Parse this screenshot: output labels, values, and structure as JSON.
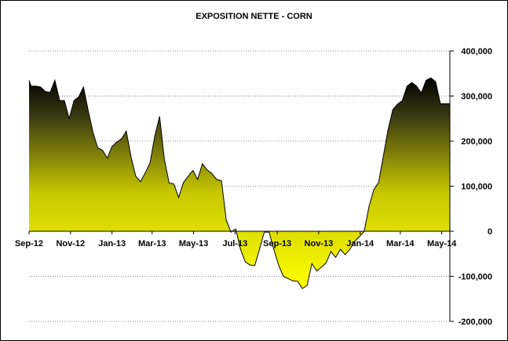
{
  "chart_data": {
    "type": "area",
    "title": "EXPOSITION NETTE - CORN",
    "xlabel": "",
    "ylabel": "",
    "ylim": [
      -200000,
      400000
    ],
    "y_ticks": [
      -200000,
      -100000,
      0,
      100000,
      200000,
      300000,
      400000
    ],
    "y_tick_labels": [
      "-200,000",
      "-100,000",
      "0",
      "100,000",
      "200,000",
      "300,000",
      "400,000"
    ],
    "y_axis_side": "right",
    "x_tick_labels": [
      "Sep-12",
      "Nov-12",
      "Jan-13",
      "Mar-13",
      "May-13",
      "Jul-13",
      "Sep-13",
      "Nov-13",
      "Jan-14",
      "Mar-14",
      "May-14"
    ],
    "x_tick_dates": [
      "2012-09-01",
      "2012-11-01",
      "2013-01-01",
      "2013-03-01",
      "2013-05-01",
      "2013-07-01",
      "2013-09-01",
      "2013-11-01",
      "2014-01-01",
      "2014-03-01",
      "2014-05-01"
    ],
    "grid": true,
    "legend": "none",
    "colors": {
      "fill_top": "#000000",
      "fill_bottom": "#ffff00",
      "line": "#000000",
      "grid": "#888888"
    },
    "series": [
      {
        "x": [
          "2012-09-01",
          "2012-09-04",
          "2012-09-11",
          "2012-09-18",
          "2012-09-25",
          "2012-10-02",
          "2012-10-09",
          "2012-10-16",
          "2012-10-23",
          "2012-10-30",
          "2012-11-06",
          "2012-11-13",
          "2012-11-20",
          "2012-11-27",
          "2012-12-04",
          "2012-12-11",
          "2012-12-18",
          "2012-12-25",
          "2013-01-01",
          "2013-01-08",
          "2013-01-15",
          "2013-01-22",
          "2013-01-29",
          "2013-02-05",
          "2013-02-12",
          "2013-02-19",
          "2013-02-26",
          "2013-03-05",
          "2013-03-12",
          "2013-03-19",
          "2013-03-26",
          "2013-04-02",
          "2013-04-09",
          "2013-04-16",
          "2013-04-23",
          "2013-04-30",
          "2013-05-07",
          "2013-05-14",
          "2013-05-21",
          "2013-05-28",
          "2013-06-04",
          "2013-06-11",
          "2013-06-18",
          "2013-06-25",
          "2013-07-02",
          "2013-07-09",
          "2013-07-16",
          "2013-07-23",
          "2013-07-30",
          "2013-08-06",
          "2013-08-13",
          "2013-08-20",
          "2013-08-27",
          "2013-09-03",
          "2013-09-10",
          "2013-09-17",
          "2013-09-24",
          "2013-10-01",
          "2013-10-08",
          "2013-10-15",
          "2013-10-22",
          "2013-10-29",
          "2013-11-05",
          "2013-11-12",
          "2013-11-19",
          "2013-11-26",
          "2013-12-03",
          "2013-12-10",
          "2013-12-17",
          "2013-12-24",
          "2013-12-31",
          "2014-01-07",
          "2014-01-14",
          "2014-01-21",
          "2014-01-28",
          "2014-02-04",
          "2014-02-11",
          "2014-02-18",
          "2014-02-25",
          "2014-03-04",
          "2014-03-11",
          "2014-03-18",
          "2014-03-25",
          "2014-04-01",
          "2014-04-08",
          "2014-04-15",
          "2014-04-22",
          "2014-04-29",
          "2014-05-06",
          "2014-05-13"
        ],
        "values": [
          335000,
          322000,
          322000,
          320000,
          310000,
          308000,
          335000,
          290000,
          290000,
          250000,
          290000,
          298000,
          320000,
          268000,
          220000,
          185000,
          180000,
          162000,
          188000,
          198000,
          205000,
          222000,
          165000,
          122000,
          110000,
          130000,
          152000,
          212000,
          255000,
          160000,
          107000,
          105000,
          75000,
          108000,
          122000,
          135000,
          115000,
          150000,
          136000,
          128000,
          115000,
          112000,
          25000,
          -2000,
          5000,
          -40000,
          -68000,
          -75000,
          -76000,
          -40000,
          -2000,
          -2000,
          -40000,
          -75000,
          -100000,
          -105000,
          -110000,
          -111000,
          -127000,
          -120000,
          -72000,
          -88000,
          -80000,
          -70000,
          -45000,
          -58000,
          -40000,
          -52000,
          -40000,
          -22000,
          -12000,
          0,
          55000,
          92000,
          108000,
          165000,
          225000,
          270000,
          282000,
          290000,
          322000,
          330000,
          322000,
          307000,
          335000,
          340000,
          332000,
          283000,
          283000,
          283000
        ]
      }
    ]
  }
}
